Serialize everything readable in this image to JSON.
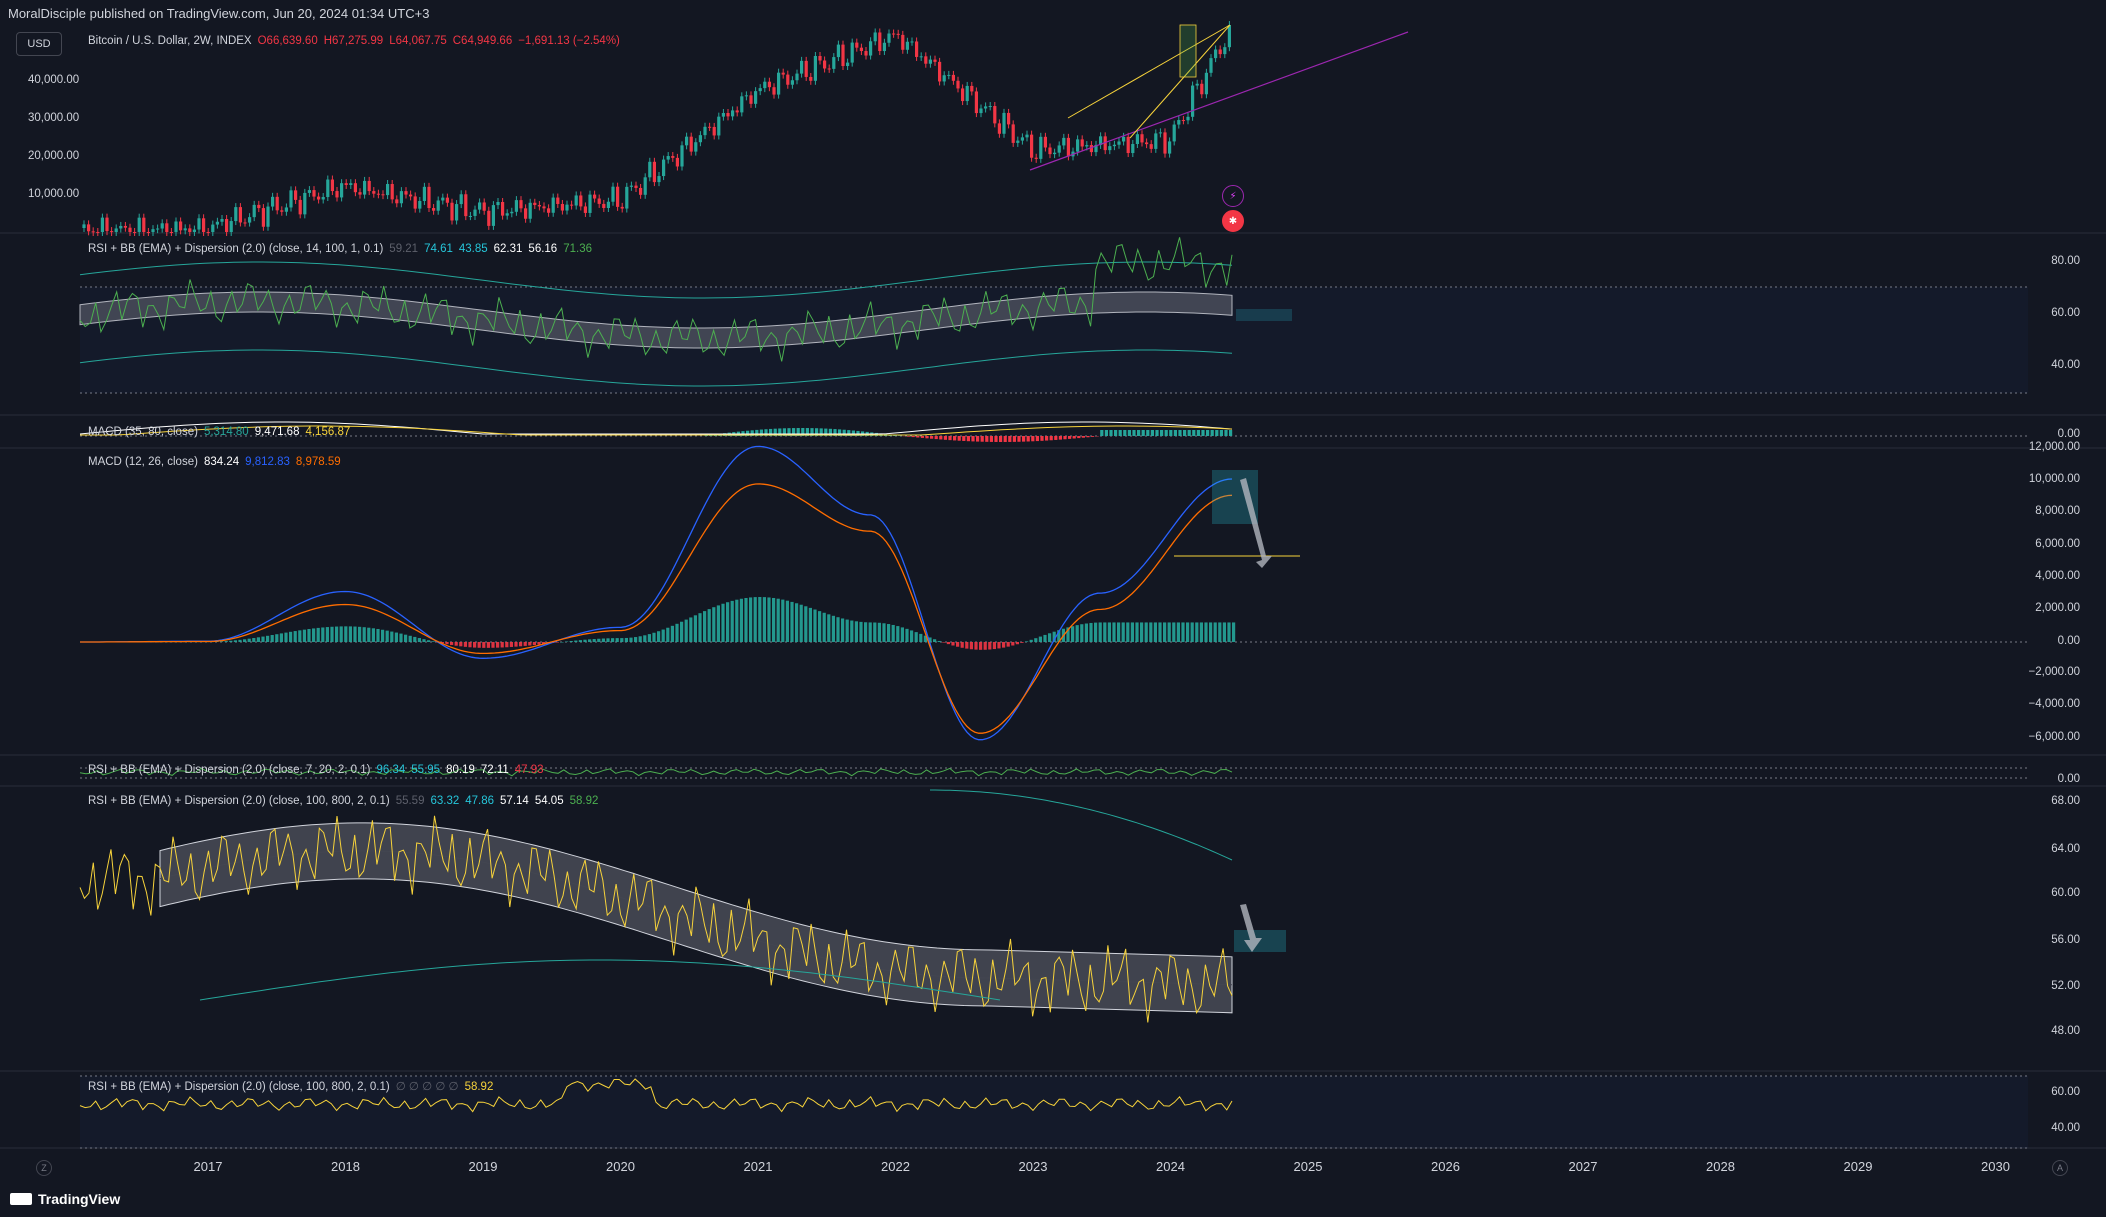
{
  "header": {
    "publisher": "MoralDisciple published on TradingView.com, Jun 20, 2024 01:34 UTC+3",
    "currency_button": "USD"
  },
  "main_legend": {
    "symbol": "Bitcoin / U.S. Dollar, 2W, INDEX",
    "open": "O66,639.60",
    "high": "H67,275.99",
    "low": "L64,067.75",
    "close": "C64,949.66",
    "change": "−1,691.13 (−2.54%)"
  },
  "rsi1_legend": {
    "name": "RSI + BB (EMA) + Dispersion (2.0) (close, 14, 100, 1, 0.1)",
    "v0": "59.21",
    "v1": "74.61",
    "v2": "43.85",
    "v3": "62.31",
    "v4": "56.16",
    "v5": "71.36"
  },
  "macd1_legend": {
    "name": "MACD (35, 80, close)",
    "v1": "5,314.80",
    "v2": "9,471.68",
    "v3": "4,156.87"
  },
  "macd2_legend": {
    "name": "MACD (12, 26, close)",
    "v1": "834.24",
    "v2": "9,812.83",
    "v3": "8,978.59"
  },
  "rsi2_legend": {
    "name": "RSI + BB (EMA) + Dispersion (2.0) (close, 7, 20, 2, 0.1)",
    "v0": "96.34",
    "v1": "55.95",
    "v2": "80.19",
    "v3": "72.11",
    "v4": "47.93"
  },
  "rsi3_legend": {
    "name": "RSI + BB (EMA) + Dispersion (2.0) (close, 100, 800, 2, 0.1)",
    "v0": "55.59",
    "v1": "63.32",
    "v2": "47.86",
    "v3": "57.14",
    "v4": "54.05",
    "v5": "58.92"
  },
  "rsi4_legend": {
    "name": "RSI + BB (EMA) + Dispersion (2.0) (close, 100, 800, 2, 0.1)",
    "empties": "∅ ∅ ∅ ∅ ∅",
    "v5": "58.92"
  },
  "price_axis": [
    "40,000.00",
    "30,000.00",
    "20,000.00",
    "10,000.00"
  ],
  "rsi1_axis": [
    "80.00",
    "60.00",
    "40.00"
  ],
  "macd1_axis": [
    "0.00"
  ],
  "macd2_axis": [
    "12,000.00",
    "10,000.00",
    "8,000.00",
    "6,000.00",
    "4,000.00",
    "2,000.00",
    "0.00",
    "−2,000.00",
    "−4,000.00",
    "−6,000.00"
  ],
  "rsi2_axis": [
    "0.00"
  ],
  "rsi3_axis": [
    "68.00",
    "64.00",
    "60.00",
    "56.00",
    "52.00",
    "48.00"
  ],
  "rsi4_axis": [
    "60.00",
    "40.00"
  ],
  "x_axis": [
    "2017",
    "2018",
    "2019",
    "2020",
    "2021",
    "2022",
    "2023",
    "2024",
    "2025",
    "2026",
    "2027",
    "2028",
    "2029",
    "2030"
  ],
  "footer": {
    "brand": "TradingView",
    "left_btn": "Z",
    "right_btn": "A"
  },
  "chart_data": {
    "type": "line",
    "x": [
      "2017",
      "2018",
      "2019",
      "2020",
      "2021",
      "2022",
      "2023",
      "2024"
    ],
    "series": [
      {
        "values": [
          1000,
          14000,
          3800,
          7200,
          33000,
          47000,
          16500,
          42000
        ]
      },
      {
        "values": [
          -50,
          3100,
          -1000,
          900,
          12000,
          7800,
          -6000,
          10000
        ]
      },
      {
        "values": [
          -20,
          2300,
          -700,
          700,
          9700,
          6800,
          -5600,
          9000
        ]
      },
      {
        "values": [
          58,
          68,
          60,
          58,
          66,
          64,
          56,
          58
        ]
      }
    ],
    "colors": {
      "up": "#26a69a",
      "down": "#f23645",
      "macd": "#2962ff",
      "signal": "#ff6d00",
      "band": "#787b86"
    }
  }
}
